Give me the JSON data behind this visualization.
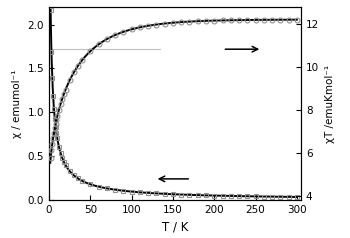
{
  "title": "",
  "xlabel": "T / K",
  "ylabel_left": "χ / emumol⁻¹",
  "ylabel_right": "χT /emuKmol⁻¹",
  "xlim": [
    0,
    305
  ],
  "ylim_left": [
    0.0,
    2.2
  ],
  "ylim_right": [
    3.8,
    12.8
  ],
  "yticks_left": [
    0.0,
    0.5,
    1.0,
    1.5,
    2.0
  ],
  "yticks_right": [
    4,
    6,
    8,
    10,
    12
  ],
  "xticks": [
    0,
    50,
    100,
    150,
    200,
    250,
    300
  ],
  "chi_color": "#909090",
  "chiT_color": "#909090",
  "fit_color": "#000000",
  "arrow_color": "#000000",
  "guideline_color": "#c0c0c0",
  "background": "#ffffff",
  "marker_chi": "s",
  "marker_chiT": "o",
  "marker_size": 3.5,
  "fit_linewidth": 1.4
}
